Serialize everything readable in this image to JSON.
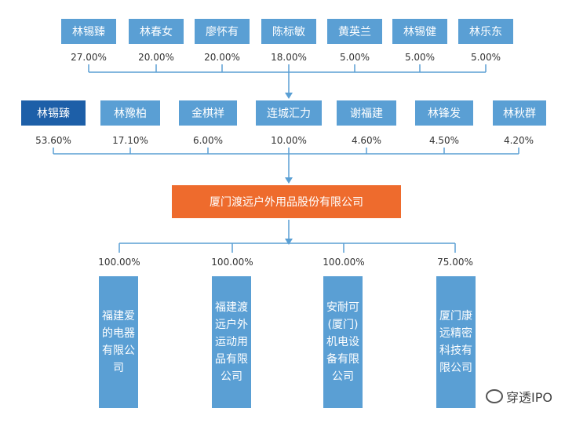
{
  "top_shareholders": [
    {
      "name": "林锡臻",
      "pct": "27.00%"
    },
    {
      "name": "林春女",
      "pct": "20.00%"
    },
    {
      "name": "廖怀有",
      "pct": "20.00%"
    },
    {
      "name": "陈标敏",
      "pct": "18.00%"
    },
    {
      "name": "黄英兰",
      "pct": "5.00%"
    },
    {
      "name": "林锡健",
      "pct": "5.00%"
    },
    {
      "name": "林乐东",
      "pct": "5.00%"
    }
  ],
  "mid_shareholders": [
    {
      "name": "林锡臻",
      "pct": "53.60%"
    },
    {
      "name": "林豫柏",
      "pct": "17.10%"
    },
    {
      "name": "金棋祥",
      "pct": "6.00%"
    },
    {
      "name": "连城汇力",
      "pct": "10.00%"
    },
    {
      "name": "谢福建",
      "pct": "4.60%"
    },
    {
      "name": "林锋发",
      "pct": "4.50%"
    },
    {
      "name": "林秋群",
      "pct": "4.20%"
    }
  ],
  "main_company": "厦门渡远户外用品股份有限公司",
  "subsidiaries": [
    {
      "name": "福建爱的电器有限公司",
      "pct": "100.00%"
    },
    {
      "name": "福建渡远户外运动用品有限公司",
      "pct": "100.00%"
    },
    {
      "name": "安耐可(厦门)机电设备有限公司",
      "pct": "100.00%"
    },
    {
      "name": "厦门康远精密科技有限公司",
      "pct": "75.00%"
    }
  ],
  "watermark": "穿透IPO",
  "colors": {
    "box_blue": "#5a9fd4",
    "box_dark_blue": "#1d5fa8",
    "main_orange": "#ee6b2d",
    "line_blue": "#5a9fd4"
  }
}
